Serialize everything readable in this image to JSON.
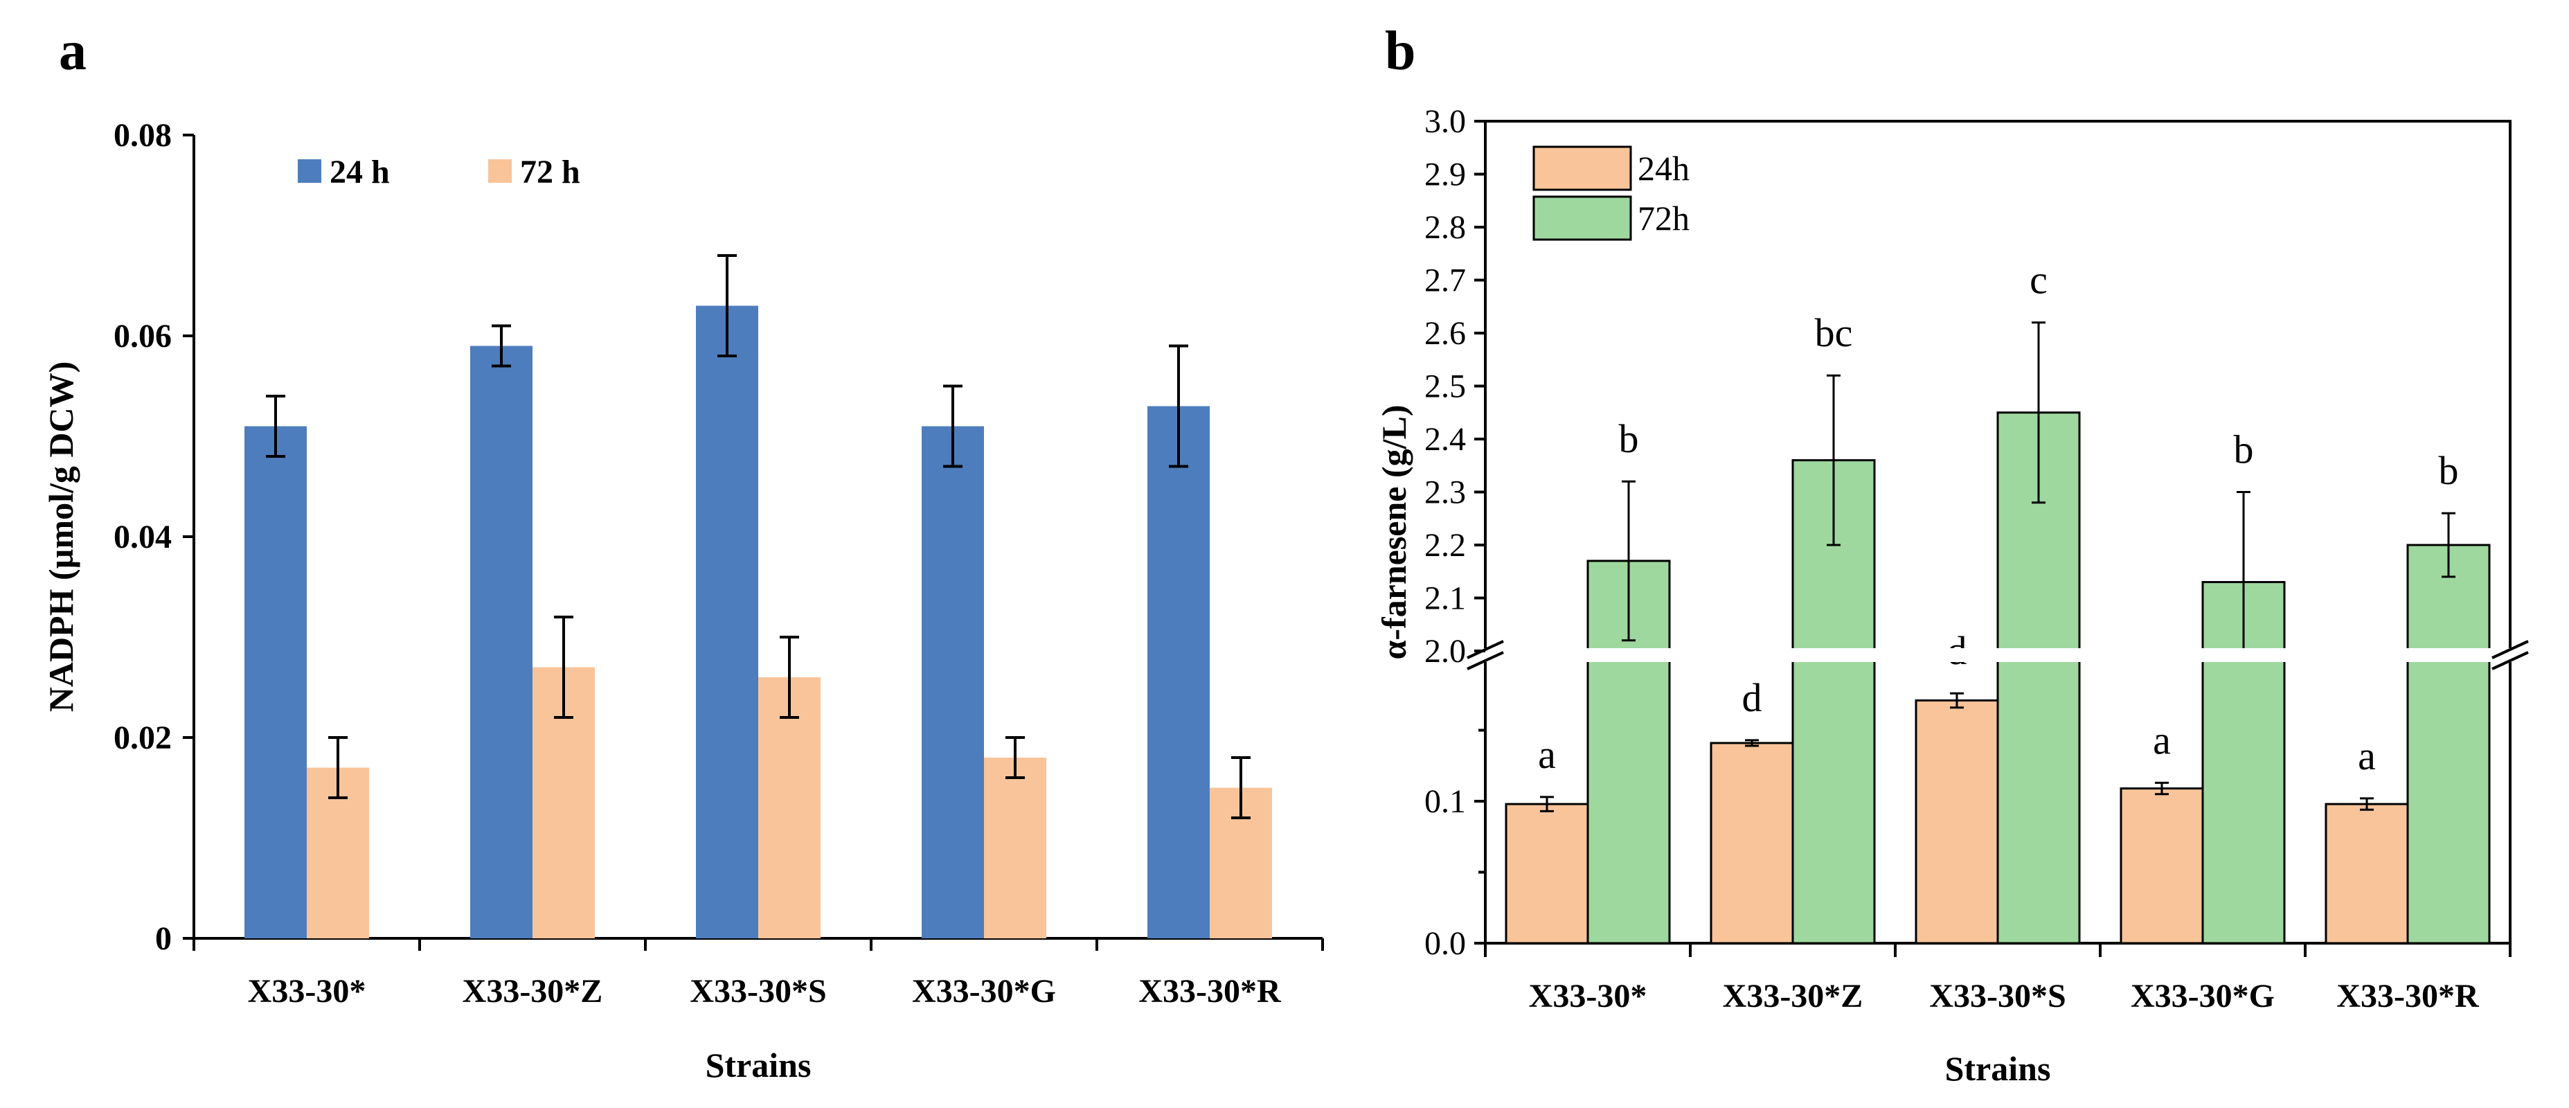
{
  "chart_data": [
    {
      "panel": "a",
      "type": "bar",
      "title": "",
      "xlabel": "Strains",
      "ylabel": "NADPH (µmol/g DCW)",
      "categories": [
        "X33-30*",
        "X33-30*Z",
        "X33-30*S",
        "X33-30*G",
        "X33-30*R"
      ],
      "ylim": [
        0,
        0.08
      ],
      "yticks": [
        "0",
        "0.02",
        "0.04",
        "0.06",
        "0.08"
      ],
      "grid": false,
      "legend": "top-left",
      "series": [
        {
          "name": "24 h",
          "color": "#4e7dbd",
          "values": [
            0.051,
            0.059,
            0.063,
            0.051,
            0.053
          ],
          "errors": [
            0.003,
            0.002,
            0.005,
            0.004,
            0.006
          ]
        },
        {
          "name": "72 h",
          "color": "#f9c49a",
          "values": [
            0.017,
            0.027,
            0.026,
            0.018,
            0.015
          ],
          "errors": [
            0.003,
            0.005,
            0.004,
            0.002,
            0.003
          ]
        }
      ]
    },
    {
      "panel": "b",
      "type": "bar",
      "title": "",
      "xlabel": "Strains",
      "ylabel": "α-farnesene (g/L)",
      "categories": [
        "X33-30*",
        "X33-30*Z",
        "X33-30*S",
        "X33-30*G",
        "X33-30*R"
      ],
      "axis_break": [
        0.2,
        2.0
      ],
      "ylim_lower": [
        0.0,
        0.2
      ],
      "ylim_upper": [
        2.0,
        3.0
      ],
      "yticks_lower": [
        "0.0",
        "0.1"
      ],
      "yticks_upper": [
        "2.0",
        "2.1",
        "2.2",
        "2.3",
        "2.4",
        "2.5",
        "2.6",
        "2.7",
        "2.8",
        "2.9",
        "3.0"
      ],
      "grid": false,
      "legend": "top-left",
      "series": [
        {
          "name": "24h",
          "color": "#f9c49a",
          "values": [
            0.098,
            0.141,
            0.171,
            0.109,
            0.098
          ],
          "errors": [
            0.005,
            0.002,
            0.005,
            0.004,
            0.004
          ],
          "labels": [
            "a",
            "d",
            "d",
            "a",
            "a"
          ]
        },
        {
          "name": "72h",
          "color": "#9ed89e",
          "values": [
            2.17,
            2.36,
            2.45,
            2.13,
            2.2
          ],
          "errors": [
            0.15,
            0.16,
            0.17,
            0.17,
            0.06
          ],
          "labels": [
            "b",
            "bc",
            "c",
            "b",
            "b"
          ]
        }
      ]
    }
  ]
}
